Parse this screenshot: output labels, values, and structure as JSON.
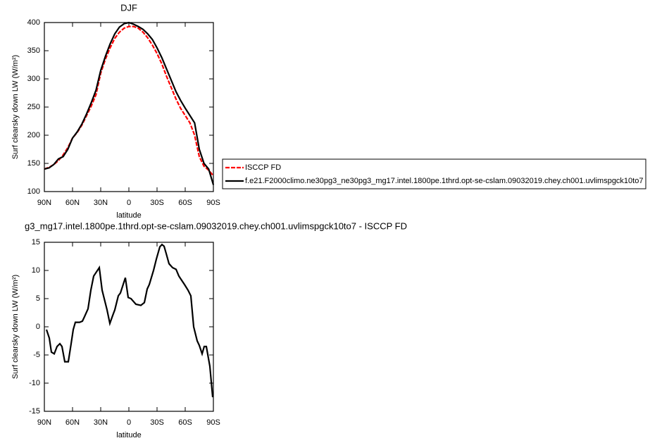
{
  "chart_data": [
    {
      "type": "line",
      "title": "DJF",
      "xlabel": "latitude",
      "ylabel": "Surf clearsky down LW (W/m²)",
      "x": [
        90,
        85,
        80,
        75,
        70,
        65,
        60,
        55,
        50,
        45,
        40,
        35,
        30,
        25,
        20,
        15,
        10,
        5,
        0,
        -5,
        -10,
        -15,
        -20,
        -25,
        -30,
        -35,
        -40,
        -45,
        -50,
        -55,
        -60,
        -65,
        -70,
        -75,
        -80,
        -85,
        -90
      ],
      "xlim": [
        90,
        -90
      ],
      "xticks": [
        {
          "value": 90,
          "label": "90N"
        },
        {
          "value": 60,
          "label": "60N"
        },
        {
          "value": 30,
          "label": "30N"
        },
        0,
        {
          "value": -30,
          "label": "30S"
        },
        {
          "value": -60,
          "label": "60S"
        },
        {
          "value": -90,
          "label": "90S"
        }
      ],
      "ylim": [
        100,
        400
      ],
      "yticks": [
        100,
        150,
        200,
        250,
        300,
        350,
        400
      ],
      "legend": "right",
      "series": [
        {
          "name": "ISCCP FD",
          "color": "#ff0000",
          "line_style": "dashed",
          "values": [
            140,
            143,
            148,
            155,
            165,
            178,
            195,
            205,
            218,
            235,
            252,
            272,
            310,
            335,
            355,
            372,
            383,
            390,
            393,
            393,
            390,
            383,
            373,
            360,
            345,
            327,
            305,
            285,
            265,
            248,
            235,
            222,
            200,
            162,
            145,
            138,
            128
          ]
        },
        {
          "name": "f.e21.F2000climo.ne30pg3_ne30pg3_mg17.intel.1800pe.1thrd.opt-se-cslam.09032019.chey.ch001.uvlimspgck10to7",
          "color": "#000000",
          "line_style": "solid",
          "values": [
            140,
            142,
            148,
            158,
            162,
            175,
            195,
            206,
            220,
            238,
            258,
            280,
            315,
            340,
            362,
            380,
            392,
            398,
            400,
            397,
            393,
            388,
            380,
            370,
            355,
            338,
            318,
            298,
            278,
            262,
            248,
            235,
            222,
            175,
            150,
            140,
            112
          ]
        }
      ]
    },
    {
      "type": "line",
      "title": "g3_mg17.intel.1800pe.1thrd.opt-se-cslam.09032019.chey.ch001.uvlimspgck10to7 - ISCCP FD",
      "xlabel": "latitude",
      "ylabel": "Surf clearsky down LW (W/m²)",
      "x": [
        87.75,
        84.75,
        82.5,
        79.5,
        76.5,
        73.5,
        71.25,
        68.25,
        64.5,
        61.5,
        59.25,
        57,
        52.5,
        49.5,
        47.25,
        43.5,
        40.5,
        37.5,
        31.5,
        28.5,
        23.25,
        20.25,
        17.25,
        15,
        11.25,
        9,
        3.75,
        0.75,
        -2.25,
        -7.5,
        -12.75,
        -16.5,
        -19.5,
        -21.75,
        -26.25,
        -29.25,
        -33,
        -35.25,
        -37.5,
        -39.75,
        -42.75,
        -46.5,
        -50.25,
        -53.25,
        -59.25,
        -63,
        -66,
        -69,
        -72.75,
        -75,
        -78,
        -80.25,
        -82.5,
        -86.25,
        -89.25
      ],
      "values": [
        -0.5,
        -2,
        -4.5,
        -4.8,
        -3.5,
        -3,
        -3.5,
        -6.2,
        -6.2,
        -3,
        -0.5,
        0.8,
        0.8,
        1,
        1.8,
        3.2,
        6.5,
        9,
        10.5,
        6.5,
        3,
        0.6,
        2,
        3,
        5.5,
        6,
        8.7,
        5.2,
        5,
        4,
        3.8,
        4.3,
        6.7,
        7.5,
        10,
        12,
        14.2,
        14.6,
        14.3,
        13,
        11.2,
        10.5,
        10.2,
        9,
        7.5,
        6.5,
        5.5,
        0,
        -2.5,
        -3.3,
        -4.8,
        -3.5,
        -3.5,
        -7,
        -12.5
      ],
      "color": "#000000",
      "xlim": [
        90,
        -90
      ],
      "xticks": [
        {
          "value": 90,
          "label": "90N"
        },
        {
          "value": 60,
          "label": "60N"
        },
        {
          "value": 30,
          "label": "30N"
        },
        0,
        {
          "value": -30,
          "label": "30S"
        },
        {
          "value": -60,
          "label": "60S"
        },
        {
          "value": -90,
          "label": "90S"
        }
      ],
      "ylim": [
        -15,
        15
      ],
      "yticks": [
        -15,
        -10,
        -5,
        0,
        5,
        10,
        15
      ]
    }
  ]
}
